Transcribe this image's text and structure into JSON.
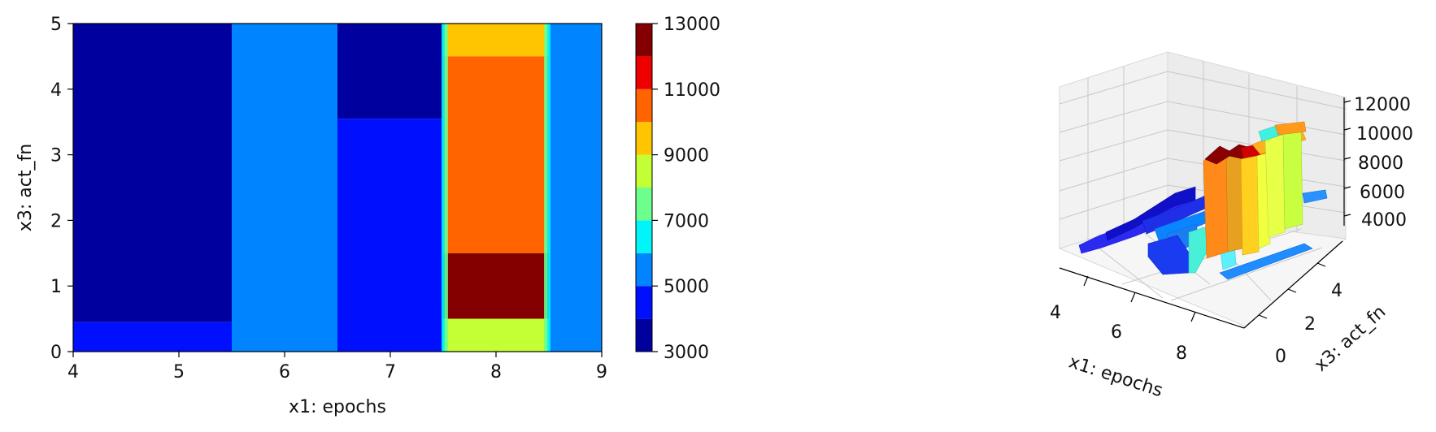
{
  "chart_data": [
    {
      "type": "heatmap",
      "title": "",
      "xlabel": "x1: epochs",
      "ylabel": "x3: act_fn",
      "xlim": [
        4,
        9
      ],
      "ylim": [
        0,
        5
      ],
      "xticks": [
        4,
        5,
        6,
        7,
        8,
        9
      ],
      "yticks": [
        0,
        1,
        2,
        3,
        4,
        5
      ],
      "regions": [
        {
          "x0": 4,
          "x1": 5.5,
          "y0": 0.45,
          "y1": 5,
          "value": 3500
        },
        {
          "x0": 4,
          "x1": 5.5,
          "y0": 0,
          "y1": 0.45,
          "value": 4500
        },
        {
          "x0": 5.5,
          "x1": 6.5,
          "y0": 0,
          "y1": 5,
          "value": 5500
        },
        {
          "x0": 6.5,
          "x1": 7.5,
          "y0": 0,
          "y1": 3.55,
          "value": 4500
        },
        {
          "x0": 6.5,
          "x1": 7.5,
          "y0": 3.55,
          "y1": 5,
          "value": 3500
        },
        {
          "x0": 7.5,
          "x1": 8.5,
          "y0": 4.5,
          "y1": 5,
          "value": 9500
        },
        {
          "x0": 7.5,
          "x1": 8.5,
          "y0": 1.5,
          "y1": 4.5,
          "value": 10500
        },
        {
          "x0": 7.5,
          "x1": 8.5,
          "y0": 0.5,
          "y1": 1.5,
          "value": 12500
        },
        {
          "x0": 7.5,
          "x1": 8.5,
          "y0": 0,
          "y1": 0.5,
          "value": 8500
        },
        {
          "x0": 8.5,
          "x1": 9,
          "y0": 0,
          "y1": 5,
          "value": 5500
        }
      ],
      "colorbar": {
        "levels": [
          3000,
          4000,
          5000,
          6000,
          7000,
          8000,
          9000,
          10000,
          11000,
          12000,
          13000
        ],
        "tick_labels": [
          "3000",
          "5000",
          "7000",
          "9000",
          "11000",
          "13000"
        ],
        "colors": [
          "#00009f",
          "#0010ff",
          "#0084ff",
          "#00f4f8",
          "#6cff8c",
          "#c3ff34",
          "#ffc500",
          "#ff6400",
          "#ee0000",
          "#840000"
        ]
      }
    },
    {
      "type": "surface3d",
      "xlabel": "x1: epochs",
      "ylabel": "x3: act_fn",
      "zlabel": "",
      "xticks": [
        "4",
        "6",
        "8"
      ],
      "yticks": [
        "0",
        "2",
        "4"
      ],
      "zticks": [
        "4000",
        "6000",
        "8000",
        "10000",
        "12000"
      ],
      "zlim": [
        3000,
        12500
      ],
      "surface": [
        {
          "x": 4,
          "y": 0,
          "value": 4500
        },
        {
          "x": 4.5,
          "y": 2.5,
          "value": 3500
        },
        {
          "x": 5,
          "y": 4.5,
          "value": 3500
        },
        {
          "x": 6,
          "y": 0,
          "value": 5500
        },
        {
          "x": 6,
          "y": 4.5,
          "value": 5500
        },
        {
          "x": 7,
          "y": 0,
          "value": 4500
        },
        {
          "x": 7,
          "y": 4,
          "value": 3500
        },
        {
          "x": 8,
          "y": 0,
          "value": 8500
        },
        {
          "x": 8,
          "y": 1,
          "value": 12500
        },
        {
          "x": 8,
          "y": 3,
          "value": 10500
        },
        {
          "x": 8,
          "y": 5,
          "value": 9500
        },
        {
          "x": 9,
          "y": 0,
          "value": 5500
        },
        {
          "x": 9,
          "y": 5,
          "value": 5500
        }
      ]
    }
  ]
}
